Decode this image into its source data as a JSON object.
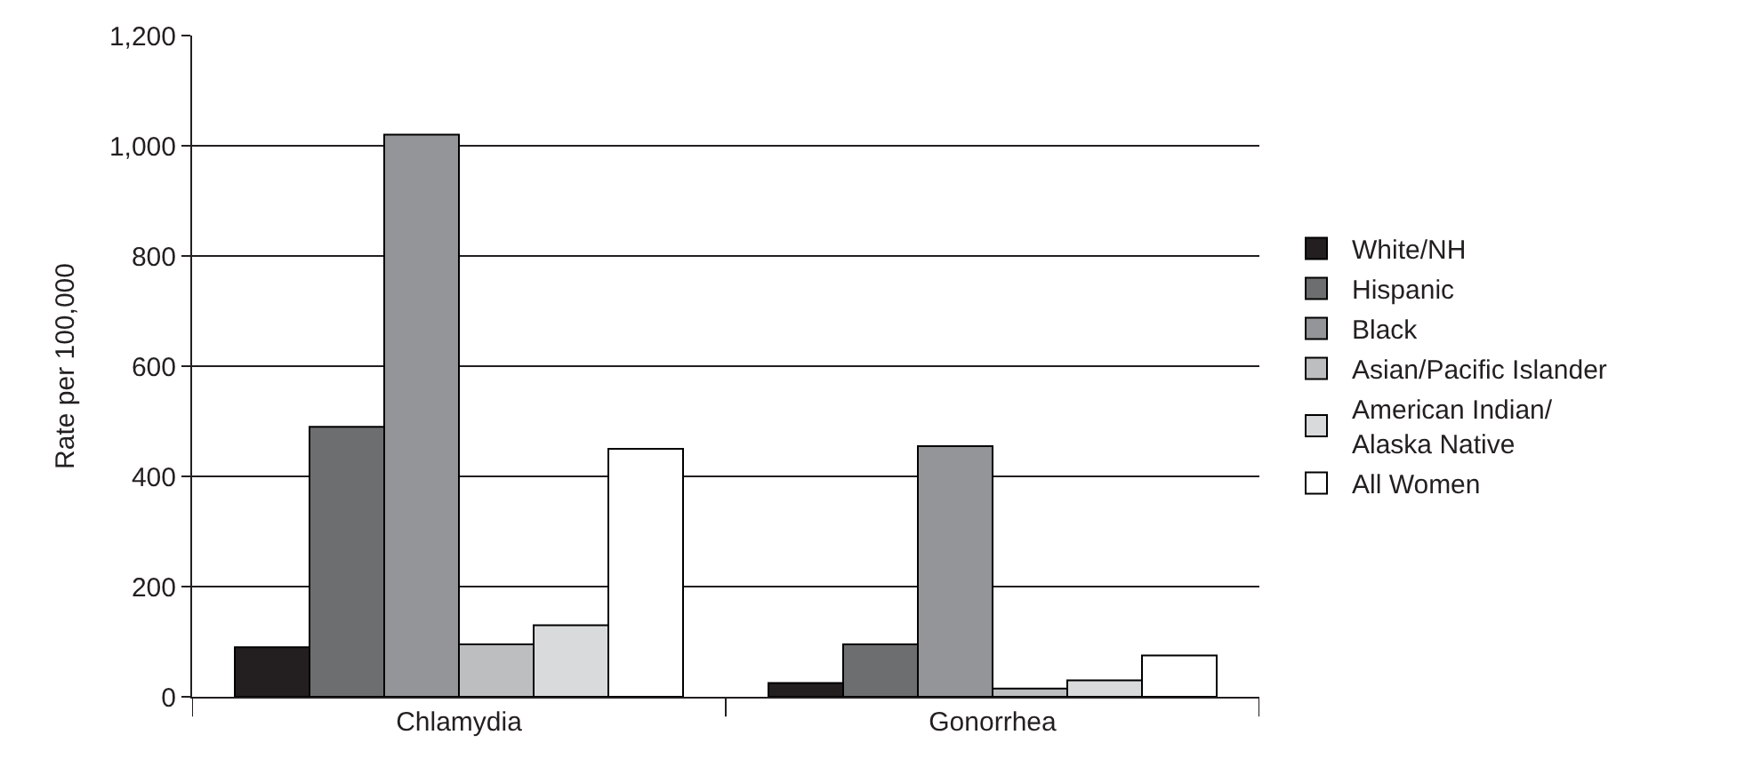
{
  "chart_data": {
    "type": "bar",
    "ylabel": "Rate per 100,000",
    "categories": [
      "Chlamydia",
      "Gonorrhea"
    ],
    "series": [
      {
        "name": "White/NH",
        "color": "#231f20",
        "values": [
          90,
          25
        ]
      },
      {
        "name": "Hispanic",
        "color": "#6d6e70",
        "values": [
          490,
          95
        ]
      },
      {
        "name": "Black",
        "color": "#939598",
        "values": [
          1020,
          455
        ]
      },
      {
        "name": "Asian/Pacific Islander",
        "color": "#bcbec0",
        "values": [
          95,
          15
        ]
      },
      {
        "name": "American Indian/\nAlaska Native",
        "color": "#d9dadb",
        "values": [
          130,
          30
        ]
      },
      {
        "name": "All Women",
        "color": "#ffffff",
        "values": [
          450,
          75
        ]
      }
    ],
    "ylim": [
      0,
      1200
    ],
    "yticks": [
      0,
      {
        "value": 200,
        "label": "200"
      },
      {
        "value": 400,
        "label": "400"
      },
      {
        "value": 600,
        "label": "600"
      },
      {
        "value": 800,
        "label": "800"
      },
      {
        "value": 1000,
        "label": "1,000"
      },
      {
        "value": 1200,
        "label": "1,200"
      }
    ],
    "grid": "y",
    "legend": "right"
  }
}
